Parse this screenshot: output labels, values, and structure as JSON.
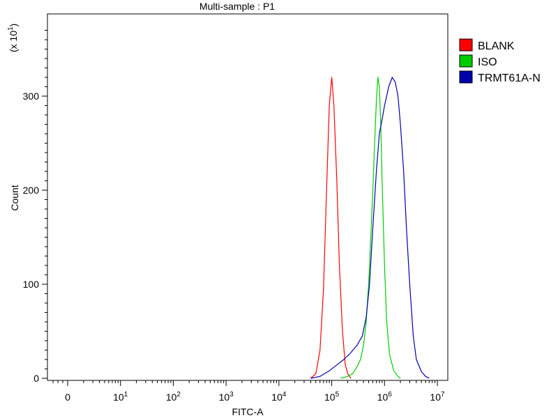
{
  "chart_data": {
    "type": "line",
    "title": "Multi-sample : P1",
    "xlabel": "FITC-A",
    "ylabel": "Count",
    "y_multiplier": "(x 10",
    "y_multiplier_exp": "1",
    "y_multiplier_close": ")",
    "x_scale": "log",
    "xlim": [
      1,
      10000000
    ],
    "ylim": [
      0,
      380
    ],
    "x_ticks": [
      {
        "base": "0",
        "exp": "",
        "value": 1
      },
      {
        "base": "10",
        "exp": "1",
        "value": 10
      },
      {
        "base": "10",
        "exp": "2",
        "value": 100
      },
      {
        "base": "10",
        "exp": "3",
        "value": 1000
      },
      {
        "base": "10",
        "exp": "4",
        "value": 10000
      },
      {
        "base": "10",
        "exp": "5",
        "value": 100000
      },
      {
        "base": "10",
        "exp": "6",
        "value": 1000000
      },
      {
        "base": "10",
        "exp": "7",
        "value": 10000000
      }
    ],
    "y_ticks": [
      {
        "label": "0",
        "value": 0
      },
      {
        "label": "100",
        "value": 100
      },
      {
        "label": "200",
        "value": 200
      },
      {
        "label": "300",
        "value": 300
      }
    ],
    "legend_position": "right",
    "series": [
      {
        "name": "BLANK",
        "color": "#ff0000",
        "points": [
          [
            40000,
            0
          ],
          [
            50000,
            5
          ],
          [
            60000,
            30
          ],
          [
            70000,
            95
          ],
          [
            80000,
            200
          ],
          [
            90000,
            290
          ],
          [
            100000,
            320
          ],
          [
            110000,
            290
          ],
          [
            125000,
            210
          ],
          [
            140000,
            120
          ],
          [
            160000,
            50
          ],
          [
            180000,
            15
          ],
          [
            200000,
            5
          ],
          [
            230000,
            0
          ]
        ]
      },
      {
        "name": "ISO",
        "color": "#00cc00",
        "points": [
          [
            150000,
            0
          ],
          [
            200000,
            2
          ],
          [
            250000,
            5
          ],
          [
            300000,
            12
          ],
          [
            350000,
            20
          ],
          [
            400000,
            35
          ],
          [
            450000,
            60
          ],
          [
            500000,
            100
          ],
          [
            550000,
            150
          ],
          [
            600000,
            200
          ],
          [
            650000,
            250
          ],
          [
            700000,
            295
          ],
          [
            750000,
            320
          ],
          [
            800000,
            310
          ],
          [
            850000,
            270
          ],
          [
            900000,
            210
          ],
          [
            1000000,
            120
          ],
          [
            1100000,
            60
          ],
          [
            1250000,
            25
          ],
          [
            1500000,
            8
          ],
          [
            1800000,
            2
          ],
          [
            2000000,
            0
          ]
        ]
      },
      {
        "name": "TRMT61A-N",
        "color": "#0000aa",
        "points": [
          [
            40000,
            0
          ],
          [
            60000,
            2
          ],
          [
            90000,
            8
          ],
          [
            130000,
            15
          ],
          [
            170000,
            20
          ],
          [
            220000,
            26
          ],
          [
            300000,
            35
          ],
          [
            380000,
            45
          ],
          [
            450000,
            65
          ],
          [
            520000,
            100
          ],
          [
            600000,
            160
          ],
          [
            700000,
            220
          ],
          [
            800000,
            260
          ],
          [
            900000,
            275
          ],
          [
            1000000,
            290
          ],
          [
            1200000,
            310
          ],
          [
            1400000,
            320
          ],
          [
            1600000,
            315
          ],
          [
            1800000,
            300
          ],
          [
            2000000,
            270
          ],
          [
            2300000,
            220
          ],
          [
            2600000,
            160
          ],
          [
            3000000,
            100
          ],
          [
            3500000,
            45
          ],
          [
            4000000,
            20
          ],
          [
            5000000,
            7
          ],
          [
            6000000,
            2
          ],
          [
            7000000,
            0
          ]
        ]
      }
    ]
  }
}
